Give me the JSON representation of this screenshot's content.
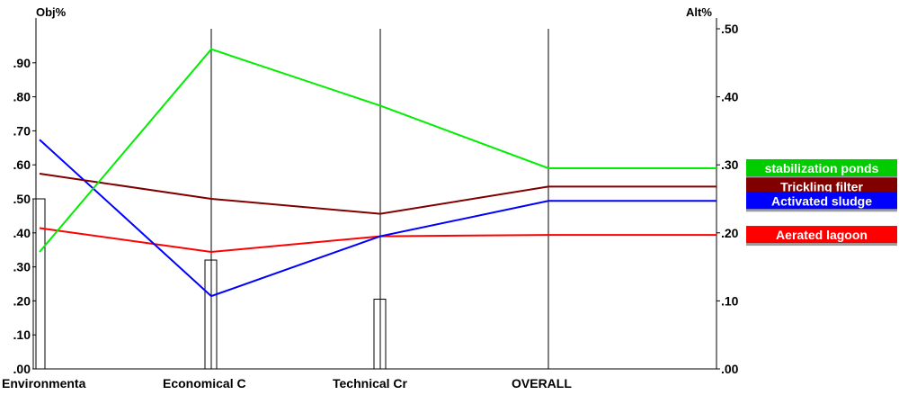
{
  "chart_data": {
    "type": "line",
    "left_axis_title": "Obj%",
    "right_axis_title": "Alt%",
    "categories": [
      "Environmenta",
      "Economical C",
      "Technical Cr",
      "OVERALL"
    ],
    "left_ylim": [
      0,
      1.0
    ],
    "right_ylim": [
      0,
      0.5
    ],
    "left_ticks": [
      ".00",
      ".10",
      ".20",
      ".30",
      ".40",
      ".50",
      ".60",
      ".70",
      ".80",
      ".90"
    ],
    "right_ticks": [
      ".00",
      ".10",
      ".20",
      ".30",
      ".40",
      ".50"
    ],
    "objective_weights": [
      0.5,
      0.32,
      0.205
    ],
    "series": [
      {
        "name": "stabilization ponds",
        "color": "#00ee00",
        "values": [
          0.172,
          0.47,
          0.387,
          0.295
        ],
        "legend_bg": "#00cc00"
      },
      {
        "name": "Trickling filter",
        "color": "#800000",
        "values": [
          0.287,
          0.25,
          0.228,
          0.268
        ],
        "legend_bg": "#800000"
      },
      {
        "name": "Activated sludge",
        "color": "#0000ff",
        "values": [
          0.337,
          0.107,
          0.195,
          0.247
        ],
        "legend_bg": "#0000ff"
      },
      {
        "name": "Aerated lagoon",
        "color": "#ff0000",
        "values": [
          0.207,
          0.172,
          0.195,
          0.197
        ],
        "legend_bg": "#ff0000"
      }
    ],
    "grid": false,
    "legend_placement": "right"
  }
}
